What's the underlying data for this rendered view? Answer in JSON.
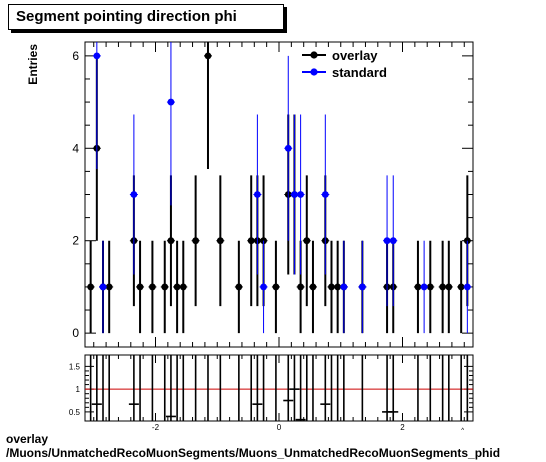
{
  "title": "Segment pointing direction phi",
  "footer": {
    "line1": "overlay",
    "line2": "/Muons/UnmatchedRecoMuonSegments/Muons_UnmatchedRecoMuonSegments_phid"
  },
  "colors": {
    "overlay": "#000000",
    "standard": "#0000ff",
    "ratio_line": "#cc0000"
  },
  "chart_data": [
    {
      "type": "scatter",
      "ylabel": "Entries",
      "xlim": [
        -3.1416,
        3.1416
      ],
      "ylim": [
        -0.3,
        6.3
      ],
      "yticks": [
        0,
        2,
        4,
        6
      ],
      "legend_position": "top-right",
      "series": [
        {
          "name": "overlay",
          "points": [
            [
              -3.05,
              1
            ],
            [
              -2.95,
              4
            ],
            [
              -2.85,
              1
            ],
            [
              -2.75,
              1
            ],
            [
              -2.35,
              2
            ],
            [
              -2.25,
              1
            ],
            [
              -2.05,
              1
            ],
            [
              -1.85,
              1
            ],
            [
              -1.75,
              2
            ],
            [
              -1.65,
              1
            ],
            [
              -1.55,
              1
            ],
            [
              -1.35,
              2
            ],
            [
              -1.15,
              6
            ],
            [
              -0.95,
              2
            ],
            [
              -0.65,
              1
            ],
            [
              -0.45,
              2
            ],
            [
              -0.35,
              2
            ],
            [
              -0.25,
              2
            ],
            [
              -0.05,
              1
            ],
            [
              0.15,
              3
            ],
            [
              0.25,
              3
            ],
            [
              0.35,
              1
            ],
            [
              0.45,
              2
            ],
            [
              0.55,
              1
            ],
            [
              0.75,
              2
            ],
            [
              0.85,
              1
            ],
            [
              0.95,
              1
            ],
            [
              1.05,
              1
            ],
            [
              1.35,
              1
            ],
            [
              1.75,
              1
            ],
            [
              1.85,
              1
            ],
            [
              2.25,
              1
            ],
            [
              2.45,
              1
            ],
            [
              2.65,
              1
            ],
            [
              2.75,
              1
            ],
            [
              2.95,
              1
            ],
            [
              3.05,
              2
            ]
          ]
        },
        {
          "name": "standard",
          "points": [
            [
              -2.95,
              6
            ],
            [
              -2.85,
              1
            ],
            [
              -2.35,
              3
            ],
            [
              -1.75,
              5
            ],
            [
              -0.35,
              3
            ],
            [
              -0.25,
              1
            ],
            [
              0.15,
              4
            ],
            [
              0.25,
              3
            ],
            [
              0.35,
              3
            ],
            [
              0.75,
              3
            ],
            [
              1.05,
              1
            ],
            [
              1.35,
              1
            ],
            [
              1.75,
              2
            ],
            [
              1.85,
              2
            ],
            [
              2.35,
              1
            ],
            [
              3.05,
              1
            ]
          ]
        }
      ]
    },
    {
      "type": "scatter",
      "xlim": [
        -3.1416,
        3.1416
      ],
      "ylim": [
        0.3,
        1.75
      ],
      "yticks": [
        0.5,
        1,
        1.5
      ],
      "xticks": [
        -2,
        0,
        2
      ],
      "xaxis_end_label": "^",
      "reference_line": 1,
      "ratio_points": [
        [
          -2.95,
          0.67
        ],
        [
          -2.35,
          0.67
        ],
        [
          -1.75,
          0.4
        ],
        [
          -0.35,
          0.67
        ],
        [
          0.15,
          0.75
        ],
        [
          0.25,
          1.0
        ],
        [
          0.35,
          0.33
        ],
        [
          0.75,
          0.67
        ],
        [
          1.75,
          0.5
        ],
        [
          1.85,
          0.5
        ]
      ]
    }
  ]
}
